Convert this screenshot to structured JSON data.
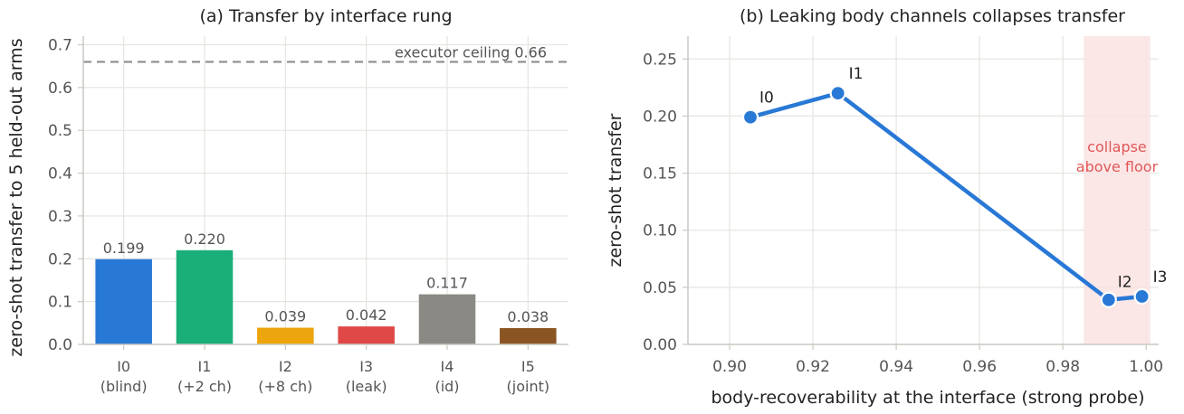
{
  "chart_data": [
    {
      "type": "bar",
      "title": "(a) Transfer by interface rung",
      "ylabel": "zero-shot transfer to 5 held-out arms",
      "xlabel": "",
      "ylim": [
        0,
        0.72
      ],
      "yticks": [
        "0.0",
        "0.1",
        "0.2",
        "0.3",
        "0.4",
        "0.5",
        "0.6",
        "0.7"
      ],
      "grid": true,
      "categories": [
        {
          "line1": "I0",
          "line2": "(blind)"
        },
        {
          "line1": "I1",
          "line2": "(+2 ch)"
        },
        {
          "line1": "I2",
          "line2": "(+8 ch)"
        },
        {
          "line1": "I3",
          "line2": "(leak)"
        },
        {
          "line1": "I4",
          "line2": "(id)"
        },
        {
          "line1": "I5",
          "line2": "(joint)"
        }
      ],
      "values": [
        0.199,
        0.22,
        0.039,
        0.042,
        0.117,
        0.038
      ],
      "value_labels": [
        "0.199",
        "0.220",
        "0.039",
        "0.042",
        "0.117",
        "0.038"
      ],
      "colors": [
        "#2878d6",
        "#1aae78",
        "#eca50c",
        "#e04848",
        "#8a8984",
        "#8a5523"
      ],
      "reference_line": {
        "value": 0.66,
        "label": "executor ceiling 0.66",
        "color": "#8c8c8c"
      }
    },
    {
      "type": "line",
      "title": "(b) Leaking body channels collapses transfer",
      "xlabel": "body-recoverability at the interface (strong probe)",
      "ylabel": "zero-shot transfer",
      "xlim": [
        0.89,
        1.003
      ],
      "ylim": [
        0,
        0.27
      ],
      "xticks": [
        "0.90",
        "0.92",
        "0.94",
        "0.96",
        "0.98",
        "1.00"
      ],
      "yticks": [
        "0.00",
        "0.05",
        "0.10",
        "0.15",
        "0.20",
        "0.25"
      ],
      "grid": true,
      "color": "#2878d6",
      "points": [
        {
          "label": "I0",
          "x": 0.905,
          "y": 0.199
        },
        {
          "label": "I1",
          "x": 0.926,
          "y": 0.22
        },
        {
          "label": "I2",
          "x": 0.991,
          "y": 0.039
        },
        {
          "label": "I3",
          "x": 0.999,
          "y": 0.042
        }
      ],
      "shaded_region": {
        "x": [
          0.985,
          1.001
        ],
        "label_line1": "collapse",
        "label_line2": "above floor",
        "color": "#fbe3e3",
        "label_color": "#e05858"
      }
    }
  ]
}
